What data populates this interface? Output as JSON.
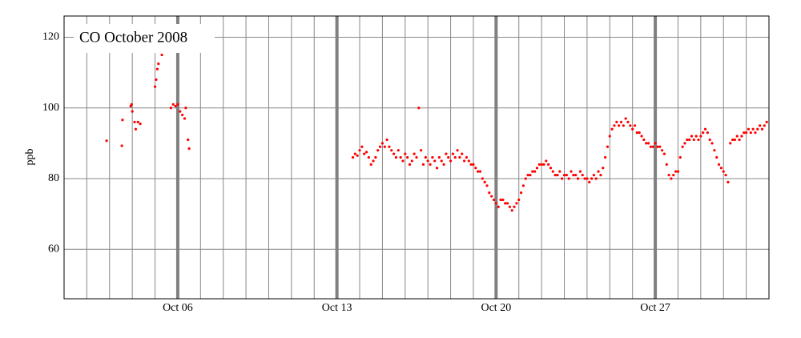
{
  "chart_data": {
    "type": "scatter",
    "title": "CO October 2008",
    "y_label": "ppb",
    "color": "#ff0000",
    "grid": true,
    "xlim": [
      1,
      32
    ],
    "ylim": [
      46,
      126
    ],
    "xticks": [
      {
        "value": 6,
        "label": "Oct 06"
      },
      {
        "value": 13,
        "label": "Oct 13"
      },
      {
        "value": 20,
        "label": "Oct 20"
      },
      {
        "value": 27,
        "label": "Oct 27"
      }
    ],
    "minor_xticks": [
      2,
      3,
      4,
      5,
      6,
      7,
      8,
      9,
      10,
      11,
      12,
      13,
      14,
      15,
      16,
      17,
      18,
      19,
      20,
      21,
      22,
      23,
      24,
      25,
      26,
      27,
      28,
      29,
      30,
      31
    ],
    "yticks": [
      60,
      80,
      100,
      120
    ],
    "x": [
      2.87,
      3.54,
      3.57,
      3.93,
      3.97,
      4.0,
      4.1,
      4.15,
      4.25,
      4.35,
      5.0,
      5.05,
      5.1,
      5.15,
      5.3,
      5.7,
      5.8,
      5.9,
      6.0,
      6.1,
      6.2,
      6.3,
      6.35,
      6.45,
      6.5,
      13.7,
      13.8,
      13.9,
      14.0,
      14.1,
      14.2,
      14.3,
      14.4,
      14.5,
      14.6,
      14.7,
      14.8,
      14.9,
      15.0,
      15.1,
      15.2,
      15.3,
      15.4,
      15.5,
      15.6,
      15.7,
      15.8,
      15.9,
      16.0,
      16.1,
      16.2,
      16.3,
      16.4,
      16.5,
      16.6,
      16.7,
      16.8,
      16.9,
      17.0,
      17.1,
      17.2,
      17.3,
      17.4,
      17.5,
      17.6,
      17.7,
      17.8,
      17.9,
      18.0,
      18.1,
      18.2,
      18.3,
      18.4,
      18.5,
      18.6,
      18.7,
      18.8,
      18.9,
      19.0,
      19.1,
      19.2,
      19.3,
      19.4,
      19.5,
      19.6,
      19.7,
      19.8,
      19.9,
      20.0,
      20.1,
      20.2,
      20.3,
      20.4,
      20.5,
      20.6,
      20.7,
      20.8,
      20.9,
      21.0,
      21.1,
      21.2,
      21.3,
      21.4,
      21.5,
      21.6,
      21.7,
      21.8,
      21.9,
      22.0,
      22.1,
      22.2,
      22.3,
      22.4,
      22.5,
      22.6,
      22.7,
      22.8,
      22.9,
      23.0,
      23.1,
      23.2,
      23.3,
      23.4,
      23.5,
      23.6,
      23.7,
      23.8,
      23.9,
      24.0,
      24.1,
      24.2,
      24.3,
      24.4,
      24.5,
      24.6,
      24.7,
      24.8,
      24.9,
      25.0,
      25.1,
      25.2,
      25.3,
      25.4,
      25.5,
      25.6,
      25.7,
      25.8,
      25.9,
      26.0,
      26.1,
      26.2,
      26.3,
      26.4,
      26.5,
      26.6,
      26.7,
      26.8,
      26.9,
      27.0,
      27.1,
      27.2,
      27.3,
      27.4,
      27.5,
      27.6,
      27.7,
      27.8,
      27.9,
      28.0,
      28.1,
      28.2,
      28.3,
      28.4,
      28.5,
      28.6,
      28.7,
      28.8,
      28.9,
      29.0,
      29.1,
      29.2,
      29.3,
      29.4,
      29.5,
      29.6,
      29.7,
      29.8,
      29.9,
      30.0,
      30.1,
      30.2,
      30.3,
      30.4,
      30.5,
      30.6,
      30.7,
      30.8,
      30.9,
      31.0,
      31.1,
      31.2,
      31.3,
      31.4,
      31.5,
      31.6,
      31.7,
      31.8,
      31.9
    ],
    "values": [
      90.7,
      89.3,
      96.6,
      100.5,
      101,
      99,
      96,
      94,
      96,
      95.5,
      106,
      108,
      111,
      112.5,
      115,
      100,
      101,
      100.5,
      101,
      99,
      98,
      97,
      100,
      91,
      88.5,
      86,
      87,
      86.5,
      88,
      89,
      87,
      87.5,
      86,
      84,
      85,
      86,
      88,
      89,
      90,
      89,
      91,
      89,
      88,
      87,
      86,
      88,
      86,
      85,
      87,
      86,
      84,
      85,
      87,
      86,
      100,
      88,
      84,
      86,
      85,
      84,
      86,
      85,
      83,
      86,
      85,
      84,
      87,
      86,
      85,
      87,
      86,
      88,
      86,
      87,
      85,
      86,
      85,
      84,
      84,
      83,
      82,
      82,
      80,
      79,
      78,
      76,
      75,
      74,
      73,
      72,
      74,
      74,
      73,
      73,
      72,
      71,
      72,
      73,
      74,
      76,
      78,
      80,
      81,
      81,
      82,
      82,
      83,
      84,
      84,
      84,
      85,
      84,
      83,
      82,
      81,
      81,
      82,
      80,
      81,
      81,
      80,
      82,
      81,
      81,
      80,
      82,
      81,
      80,
      80,
      79,
      80,
      81,
      80,
      82,
      81,
      83,
      86,
      89,
      92,
      94,
      95,
      96,
      95,
      96,
      95,
      97,
      96,
      95,
      94,
      95,
      93,
      93,
      92,
      91,
      90,
      90,
      89,
      89,
      90,
      89,
      89,
      88,
      87,
      84,
      81,
      80,
      81,
      82,
      82,
      86,
      89,
      90,
      91,
      91,
      92,
      91,
      92,
      91,
      92,
      93,
      94,
      93,
      91,
      90,
      88,
      86,
      84,
      83,
      82,
      81,
      79,
      90,
      91,
      91,
      92,
      91,
      92,
      93,
      93,
      94,
      93,
      94,
      93,
      94,
      95,
      94,
      95,
      96
    ]
  }
}
